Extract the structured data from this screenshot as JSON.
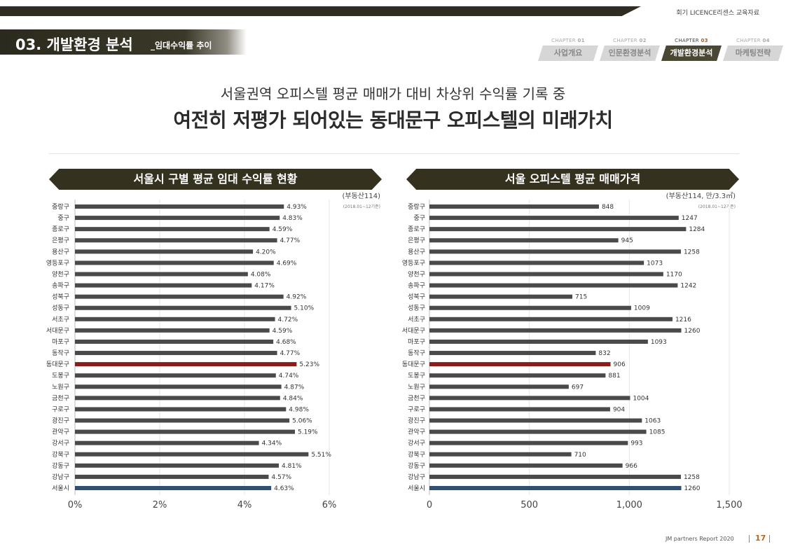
{
  "header": {
    "corner_note": "회기 LICENCE리센스 교육자료",
    "section_title": "03. 개발환경 분석",
    "section_subtitle": "_임대수익률 추이"
  },
  "chapters": [
    {
      "prefix": "CHAPTER ",
      "num": "01",
      "label": "사업개요",
      "active": false
    },
    {
      "prefix": "CHAPTER ",
      "num": "02",
      "label": "인문환경분석",
      "active": false
    },
    {
      "prefix": "CHAPTER ",
      "num": "03",
      "label": "개발환경분석",
      "active": true
    },
    {
      "prefix": "CHAPTER ",
      "num": "04",
      "label": "마케팅전략",
      "active": false
    }
  ],
  "headline": {
    "line1": "서울권역 오피스텔 평균 매매가 대비 차상위 수익률 기록 중",
    "line2": "여전히 저평가 되어있는 동대문구 오피스텔의 미래가치"
  },
  "colors": {
    "bar_default": "#4a4a4a",
    "bar_highlight": "#8b1c1c",
    "bar_average": "#2f4f75",
    "banner": "#34321f"
  },
  "chart_data": [
    {
      "type": "bar",
      "orientation": "horizontal",
      "title": "서울시 구별 평균 임대 수익률 현황",
      "source": "(부동산114)",
      "period": "(2018.01~12기준)",
      "categories": [
        "중랑구",
        "중구",
        "종로구",
        "은평구",
        "용산구",
        "영등포구",
        "양천구",
        "송파구",
        "성북구",
        "성동구",
        "서초구",
        "서대문구",
        "마포구",
        "동작구",
        "동대문구",
        "도봉구",
        "노원구",
        "금천구",
        "구로구",
        "광진구",
        "관악구",
        "강서구",
        "강북구",
        "강동구",
        "강남구",
        "서울시"
      ],
      "values": [
        4.93,
        4.83,
        4.59,
        4.77,
        4.2,
        4.69,
        4.08,
        4.17,
        4.92,
        5.1,
        4.72,
        4.59,
        4.68,
        4.77,
        5.23,
        4.74,
        4.87,
        4.84,
        4.98,
        5.06,
        5.19,
        4.34,
        5.51,
        4.81,
        4.57,
        4.63
      ],
      "value_labels": [
        "4.93%",
        "4.83%",
        "4.59%",
        "4.77%",
        "4.20%",
        "4.69%",
        "4.08%",
        "4.17%",
        "4.92%",
        "5.10%",
        "4.72%",
        "4.59%",
        "4.68%",
        "4.77%",
        "5.23%",
        "4.74%",
        "4.87%",
        "4.84%",
        "4.98%",
        "5.06%",
        "5.19%",
        "4.34%",
        "5.51%",
        "4.81%",
        "4.57%",
        "4.63%"
      ],
      "highlight": "동대문구",
      "average": "서울시",
      "xlim": [
        0,
        6
      ],
      "xticks": [
        0,
        2,
        4,
        6
      ],
      "xtick_labels": [
        "0%",
        "2%",
        "4%",
        "6%"
      ],
      "grid": true
    },
    {
      "type": "bar",
      "orientation": "horizontal",
      "title": "서울 오피스텔 평균 매매가격",
      "source": "(부동산114, 만/3.3㎡)",
      "period": "(2018.01~12기준)",
      "categories": [
        "중랑구",
        "중구",
        "종로구",
        "은평구",
        "용산구",
        "영등포구",
        "양천구",
        "송파구",
        "성북구",
        "성동구",
        "서초구",
        "서대문구",
        "마포구",
        "동작구",
        "동대문구",
        "도봉구",
        "노원구",
        "금천구",
        "구로구",
        "광진구",
        "관악구",
        "강서구",
        "강북구",
        "강동구",
        "강남구",
        "서울시"
      ],
      "values": [
        848,
        1247,
        1284,
        945,
        1258,
        1073,
        1170,
        1242,
        715,
        1009,
        1216,
        1260,
        1093,
        832,
        906,
        881,
        697,
        1004,
        904,
        1063,
        1085,
        993,
        710,
        966,
        1258,
        1260
      ],
      "value_labels": [
        "848",
        "1247",
        "1284",
        "945",
        "1258",
        "1073",
        "1170",
        "1242",
        "715",
        "1009",
        "1216",
        "1260",
        "1093",
        "832",
        "906",
        "881",
        "697",
        "1004",
        "904",
        "1063",
        "1085",
        "993",
        "710",
        "966",
        "1258",
        "1260"
      ],
      "highlight": "동대문구",
      "average": "서울시",
      "xlim": [
        0,
        1500
      ],
      "xticks": [
        0,
        500,
        1000,
        1500
      ],
      "xtick_labels": [
        "0",
        "500",
        "1,000",
        "1,500"
      ],
      "grid": true
    }
  ],
  "footer": {
    "brand": "JM partners Report 2020",
    "page": "17"
  }
}
